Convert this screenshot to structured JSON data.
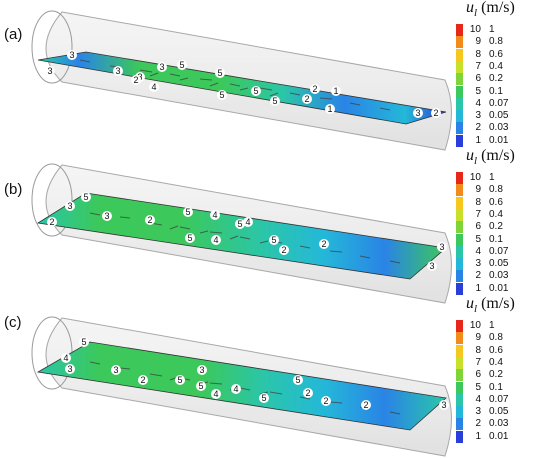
{
  "legend": {
    "symbol": "u",
    "subscript": "l",
    "unit": "(m/s)",
    "levels": [
      {
        "level": "10",
        "value": "1",
        "color": "#e8271b"
      },
      {
        "level": "9",
        "value": "0.8",
        "color": "#f28a1c"
      },
      {
        "level": "8",
        "value": "0.6",
        "color": "#f6c81f"
      },
      {
        "level": "7",
        "value": "0.4",
        "color": "#c8e02a"
      },
      {
        "level": "6",
        "value": "0.2",
        "color": "#7fd43a"
      },
      {
        "level": "5",
        "value": "0.1",
        "color": "#3cc85a"
      },
      {
        "level": "4",
        "value": "0.07",
        "color": "#2bc6a8"
      },
      {
        "level": "3",
        "value": "0.05",
        "color": "#24b8d8"
      },
      {
        "level": "2",
        "value": "0.03",
        "color": "#2a84e6"
      },
      {
        "level": "1",
        "value": "0.01",
        "color": "#2a3fd9"
      }
    ]
  },
  "panels": [
    {
      "label": "(a)",
      "contour_labels": [
        "3",
        "3",
        "5",
        "3",
        "3",
        "3",
        "2",
        "4",
        "5",
        "5",
        "5",
        "5",
        "2",
        "2",
        "1",
        "1",
        "3",
        "2"
      ]
    },
    {
      "label": "(b)",
      "contour_labels": [
        "5",
        "3",
        "3",
        "2",
        "2",
        "5",
        "4",
        "5",
        "4",
        "5",
        "4",
        "5",
        "2",
        "2",
        "3",
        "3"
      ]
    },
    {
      "label": "(c)",
      "contour_labels": [
        "5",
        "4",
        "3",
        "3",
        "2",
        "5",
        "3",
        "5",
        "4",
        "4",
        "5",
        "2",
        "5",
        "2",
        "2",
        "3"
      ]
    }
  ]
}
